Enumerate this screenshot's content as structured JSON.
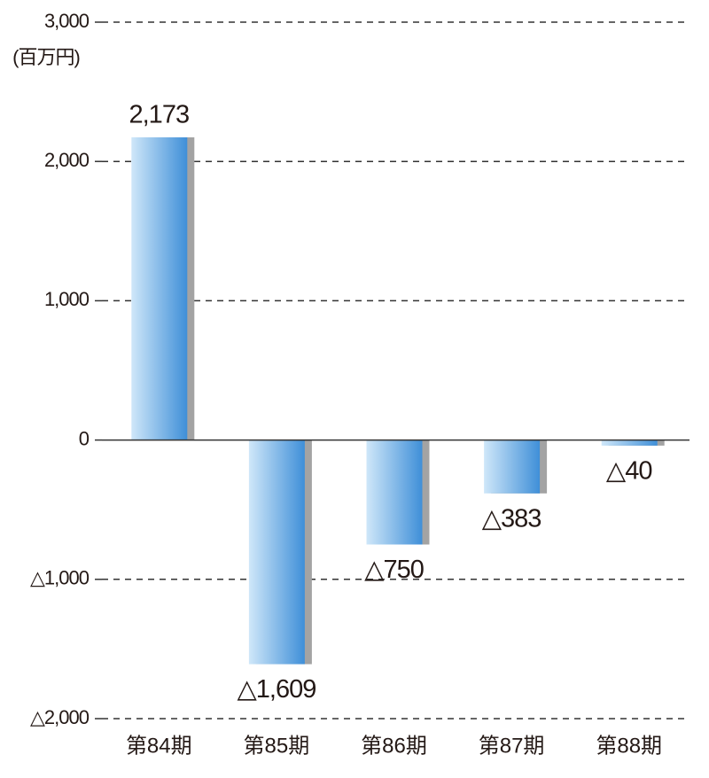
{
  "chart_data": {
    "type": "bar",
    "unit_label": "(百万円)",
    "categories": [
      "第84期",
      "第85期",
      "第86期",
      "第87期",
      "第88期"
    ],
    "values": [
      2173,
      -1609,
      -750,
      -383,
      -40
    ],
    "value_labels": [
      "2,173",
      "△1,609",
      "△750",
      "△383",
      "△40"
    ],
    "color": "#3f8fd8",
    "ylim": [
      -2000,
      3000
    ],
    "yticks": [
      {
        "value": -2000,
        "label": "△2,000"
      },
      {
        "value": -1000,
        "label": "△1,000"
      },
      0,
      {
        "value": 1000,
        "label": "1,000"
      },
      {
        "value": 2000,
        "label": "2,000"
      },
      {
        "value": 3000,
        "label": "3,000"
      }
    ],
    "grid": true
  }
}
